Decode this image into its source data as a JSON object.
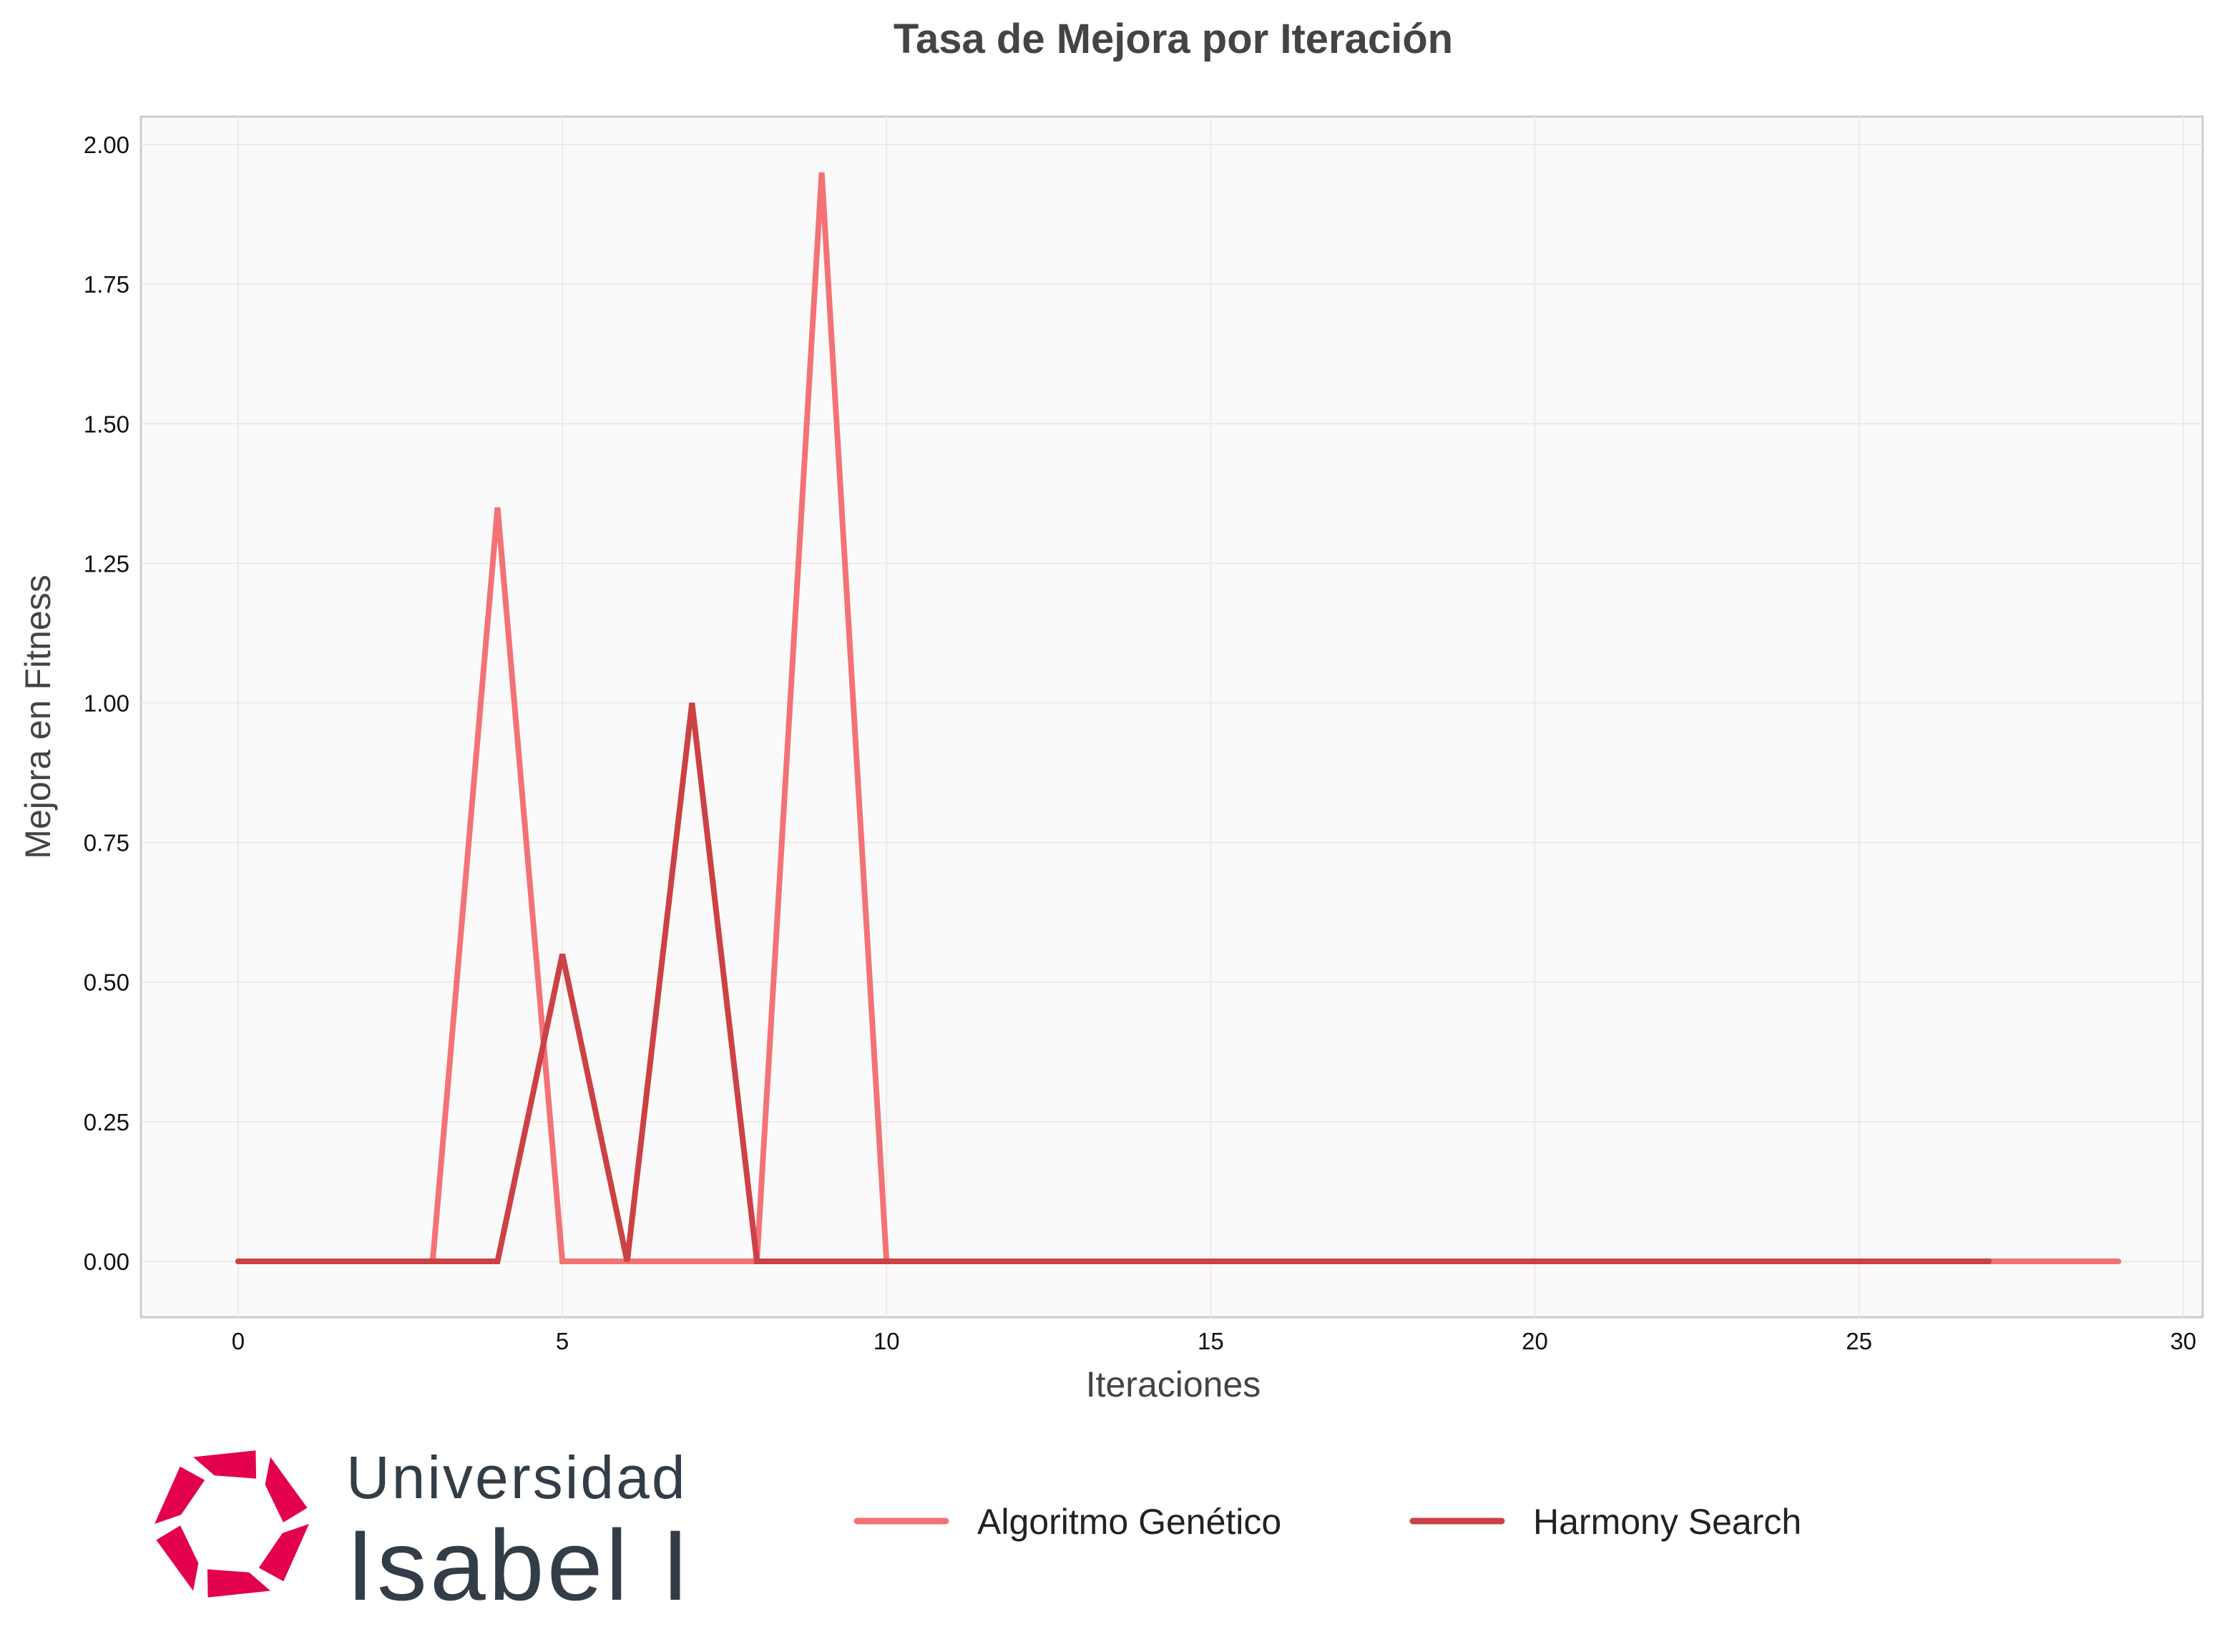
{
  "chart_data": {
    "type": "line",
    "title": "Tasa de Mejora por Iteración",
    "xlabel": "Iteraciones",
    "ylabel": "Mejora en Fitness",
    "xlim": [
      -1.5,
      30.3
    ],
    "ylim": [
      -0.1,
      2.05
    ],
    "xticks": [
      0,
      5,
      10,
      15,
      20,
      25,
      30
    ],
    "yticks": [
      0.0,
      0.25,
      0.5,
      0.75,
      1.0,
      1.25,
      1.5,
      1.75,
      2.0
    ],
    "xtick_labels": [
      "0",
      "5",
      "10",
      "15",
      "20",
      "25",
      "30"
    ],
    "ytick_labels": [
      "0.00",
      "0.25",
      "0.50",
      "0.75",
      "1.00",
      "1.25",
      "1.50",
      "1.75",
      "2.00"
    ],
    "grid": true,
    "legend_position": "bottom-center",
    "series": [
      {
        "name": "Algoritmo Genético",
        "color": "#f47274",
        "x": [
          0,
          1,
          2,
          3,
          4,
          5,
          6,
          7,
          8,
          9,
          10,
          11,
          12,
          13,
          14,
          15,
          16,
          17,
          18,
          19,
          20,
          21,
          22,
          23,
          24,
          25,
          26,
          27,
          28,
          29
        ],
        "values": [
          0,
          0,
          0,
          0,
          1.35,
          0,
          0,
          0,
          0,
          1.95,
          0,
          0,
          0,
          0,
          0,
          0,
          0,
          0,
          0,
          0,
          0,
          0,
          0,
          0,
          0,
          0,
          0,
          0,
          0,
          0
        ]
      },
      {
        "name": "Harmony Search",
        "color": "#cc4144",
        "x": [
          0,
          1,
          2,
          3,
          4,
          5,
          6,
          7,
          8,
          9,
          10,
          11,
          12,
          13,
          14,
          15,
          16,
          17,
          18,
          19,
          20,
          21,
          22,
          23,
          24,
          25,
          26,
          27
        ],
        "values": [
          0,
          0,
          0,
          0,
          0,
          0.55,
          0,
          1.0,
          0,
          0,
          0,
          0,
          0,
          0,
          0,
          0,
          0,
          0,
          0,
          0,
          0,
          0,
          0,
          0,
          0,
          0,
          0,
          0
        ]
      }
    ]
  },
  "logo": {
    "line1": "Universidad",
    "line2": "Isabel I",
    "color": "#e3004f"
  }
}
